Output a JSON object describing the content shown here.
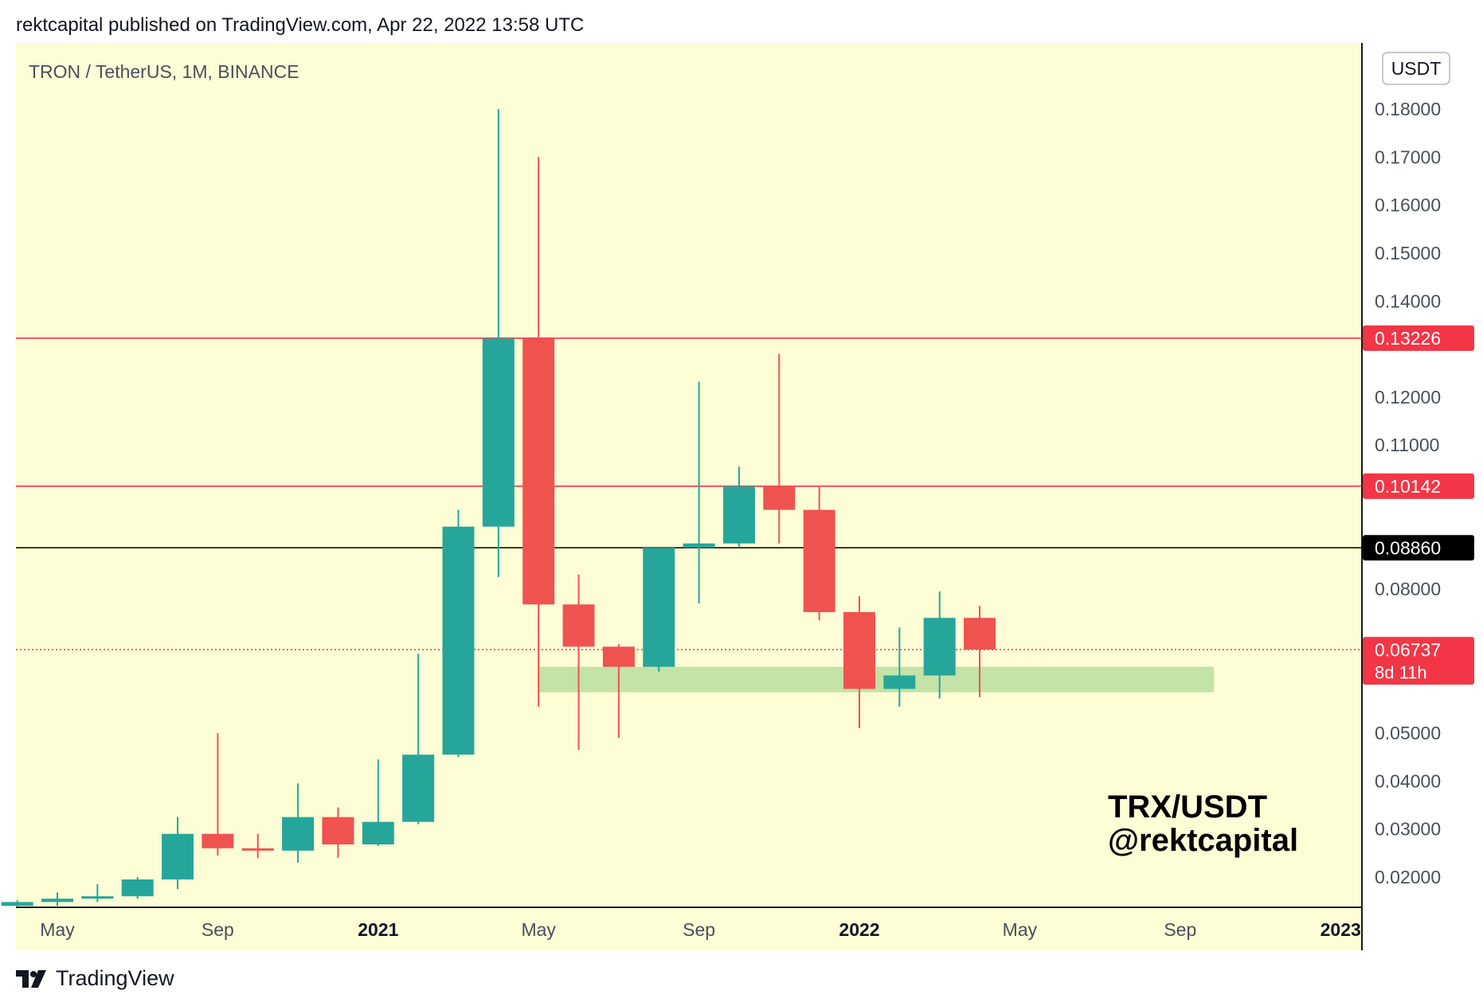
{
  "header": {
    "attribution": "rektcapital published on TradingView.com, Apr 22, 2022 13:58 UTC"
  },
  "footer": {
    "brand": "TradingView",
    "logo_icon": "tradingview-logo-icon"
  },
  "colors": {
    "background": "#ffffff",
    "chart_bg": "#fdfdd6",
    "bull": "#26a69a",
    "bear": "#ef5350",
    "resistance": "#f23645",
    "support_zone": "#c3e3a7",
    "black_level": "#000000"
  },
  "chart_data": {
    "type": "candlestick",
    "title": "TRON / TetherUS, 1M, BINANCE",
    "currency_badge": "USDT",
    "ylim": [
      0.0138,
      0.1925
    ],
    "x_months_range": [
      2020.25,
      2023.0
    ],
    "y_ticks": [
      {
        "value": 0.18,
        "label": "0.18000"
      },
      {
        "value": 0.17,
        "label": "0.17000"
      },
      {
        "value": 0.16,
        "label": "0.16000"
      },
      {
        "value": 0.15,
        "label": "0.15000"
      },
      {
        "value": 0.14,
        "label": "0.14000"
      },
      {
        "value": 0.12,
        "label": "0.12000"
      },
      {
        "value": 0.11,
        "label": "0.11000"
      },
      {
        "value": 0.08,
        "label": "0.08000"
      },
      {
        "value": 0.05,
        "label": "0.05000"
      },
      {
        "value": 0.04,
        "label": "0.04000"
      },
      {
        "value": 0.03,
        "label": "0.03000"
      },
      {
        "value": 0.02,
        "label": "0.02000"
      }
    ],
    "x_ticks": [
      {
        "date": "2020-05",
        "label": "May",
        "bold": false
      },
      {
        "date": "2020-09",
        "label": "Sep",
        "bold": false
      },
      {
        "date": "2021-01",
        "label": "2021",
        "bold": true
      },
      {
        "date": "2021-05",
        "label": "May",
        "bold": false
      },
      {
        "date": "2021-09",
        "label": "Sep",
        "bold": false
      },
      {
        "date": "2022-01",
        "label": "2022",
        "bold": true
      },
      {
        "date": "2022-05",
        "label": "May",
        "bold": false
      },
      {
        "date": "2022-09",
        "label": "Sep",
        "bold": false
      },
      {
        "date": "2023-01",
        "label": "2023",
        "bold": true
      }
    ],
    "candles": [
      {
        "date": "2020-04",
        "open": 0.014,
        "high": 0.0152,
        "low": 0.0138,
        "close": 0.0148
      },
      {
        "date": "2020-05",
        "open": 0.0148,
        "high": 0.0168,
        "low": 0.014,
        "close": 0.0155
      },
      {
        "date": "2020-06",
        "open": 0.0155,
        "high": 0.0185,
        "low": 0.0148,
        "close": 0.016
      },
      {
        "date": "2020-07",
        "open": 0.016,
        "high": 0.02,
        "low": 0.0155,
        "close": 0.0195
      },
      {
        "date": "2020-08",
        "open": 0.0195,
        "high": 0.0325,
        "low": 0.0175,
        "close": 0.029
      },
      {
        "date": "2020-09",
        "open": 0.029,
        "high": 0.05,
        "low": 0.0245,
        "close": 0.026
      },
      {
        "date": "2020-10",
        "open": 0.026,
        "high": 0.029,
        "low": 0.024,
        "close": 0.0255
      },
      {
        "date": "2020-11",
        "open": 0.0255,
        "high": 0.0395,
        "low": 0.023,
        "close": 0.0325
      },
      {
        "date": "2020-12",
        "open": 0.0325,
        "high": 0.0345,
        "low": 0.024,
        "close": 0.0268
      },
      {
        "date": "2021-01",
        "open": 0.0268,
        "high": 0.0445,
        "low": 0.0265,
        "close": 0.0315
      },
      {
        "date": "2021-02",
        "open": 0.0315,
        "high": 0.0665,
        "low": 0.031,
        "close": 0.0455
      },
      {
        "date": "2021-03",
        "open": 0.0455,
        "high": 0.0965,
        "low": 0.045,
        "close": 0.093
      },
      {
        "date": "2021-04",
        "open": 0.093,
        "high": 0.18,
        "low": 0.0825,
        "close": 0.1322
      },
      {
        "date": "2021-05",
        "open": 0.1322,
        "high": 0.17,
        "low": 0.0555,
        "close": 0.0768
      },
      {
        "date": "2021-06",
        "open": 0.0768,
        "high": 0.083,
        "low": 0.0465,
        "close": 0.068
      },
      {
        "date": "2021-07",
        "open": 0.068,
        "high": 0.0685,
        "low": 0.049,
        "close": 0.0638
      },
      {
        "date": "2021-08",
        "open": 0.0638,
        "high": 0.087,
        "low": 0.0628,
        "close": 0.0886
      },
      {
        "date": "2021-09",
        "open": 0.0886,
        "high": 0.1232,
        "low": 0.077,
        "close": 0.0895
      },
      {
        "date": "2021-10",
        "open": 0.0895,
        "high": 0.1055,
        "low": 0.0888,
        "close": 0.1014
      },
      {
        "date": "2021-11",
        "open": 0.1014,
        "high": 0.129,
        "low": 0.0895,
        "close": 0.0965
      },
      {
        "date": "2021-12",
        "open": 0.0965,
        "high": 0.1015,
        "low": 0.0735,
        "close": 0.0752
      },
      {
        "date": "2022-01",
        "open": 0.0752,
        "high": 0.0785,
        "low": 0.051,
        "close": 0.0592
      },
      {
        "date": "2022-02",
        "open": 0.0592,
        "high": 0.072,
        "low": 0.0555,
        "close": 0.062
      },
      {
        "date": "2022-03",
        "open": 0.062,
        "high": 0.0795,
        "low": 0.0572,
        "close": 0.074
      },
      {
        "date": "2022-04",
        "open": 0.074,
        "high": 0.0765,
        "low": 0.0575,
        "close": 0.0674
      }
    ],
    "levels": [
      {
        "name": "resistance-high",
        "value": 0.13226,
        "label": "0.13226",
        "color": "#f23645",
        "style": "solid"
      },
      {
        "name": "resistance-mid",
        "value": 0.10142,
        "label": "0.10142",
        "color": "#f23645",
        "style": "solid"
      },
      {
        "name": "black-level",
        "value": 0.0886,
        "label": "0.08860",
        "color": "#000000",
        "style": "solid"
      },
      {
        "name": "current-price",
        "value": 0.06737,
        "label": "0.06737",
        "sublabel": "8d 11h",
        "color": "#f23645",
        "style": "dotted"
      }
    ],
    "zones": [
      {
        "name": "support-zone",
        "from_date": "2021-05",
        "to_date": "2022-10",
        "low": 0.0585,
        "high": 0.0638,
        "color": "#c3e3a7"
      }
    ],
    "annotation": {
      "line1": "TRX/USDT",
      "line2": "@rektcapital"
    },
    "grid": false,
    "legend": "none"
  }
}
